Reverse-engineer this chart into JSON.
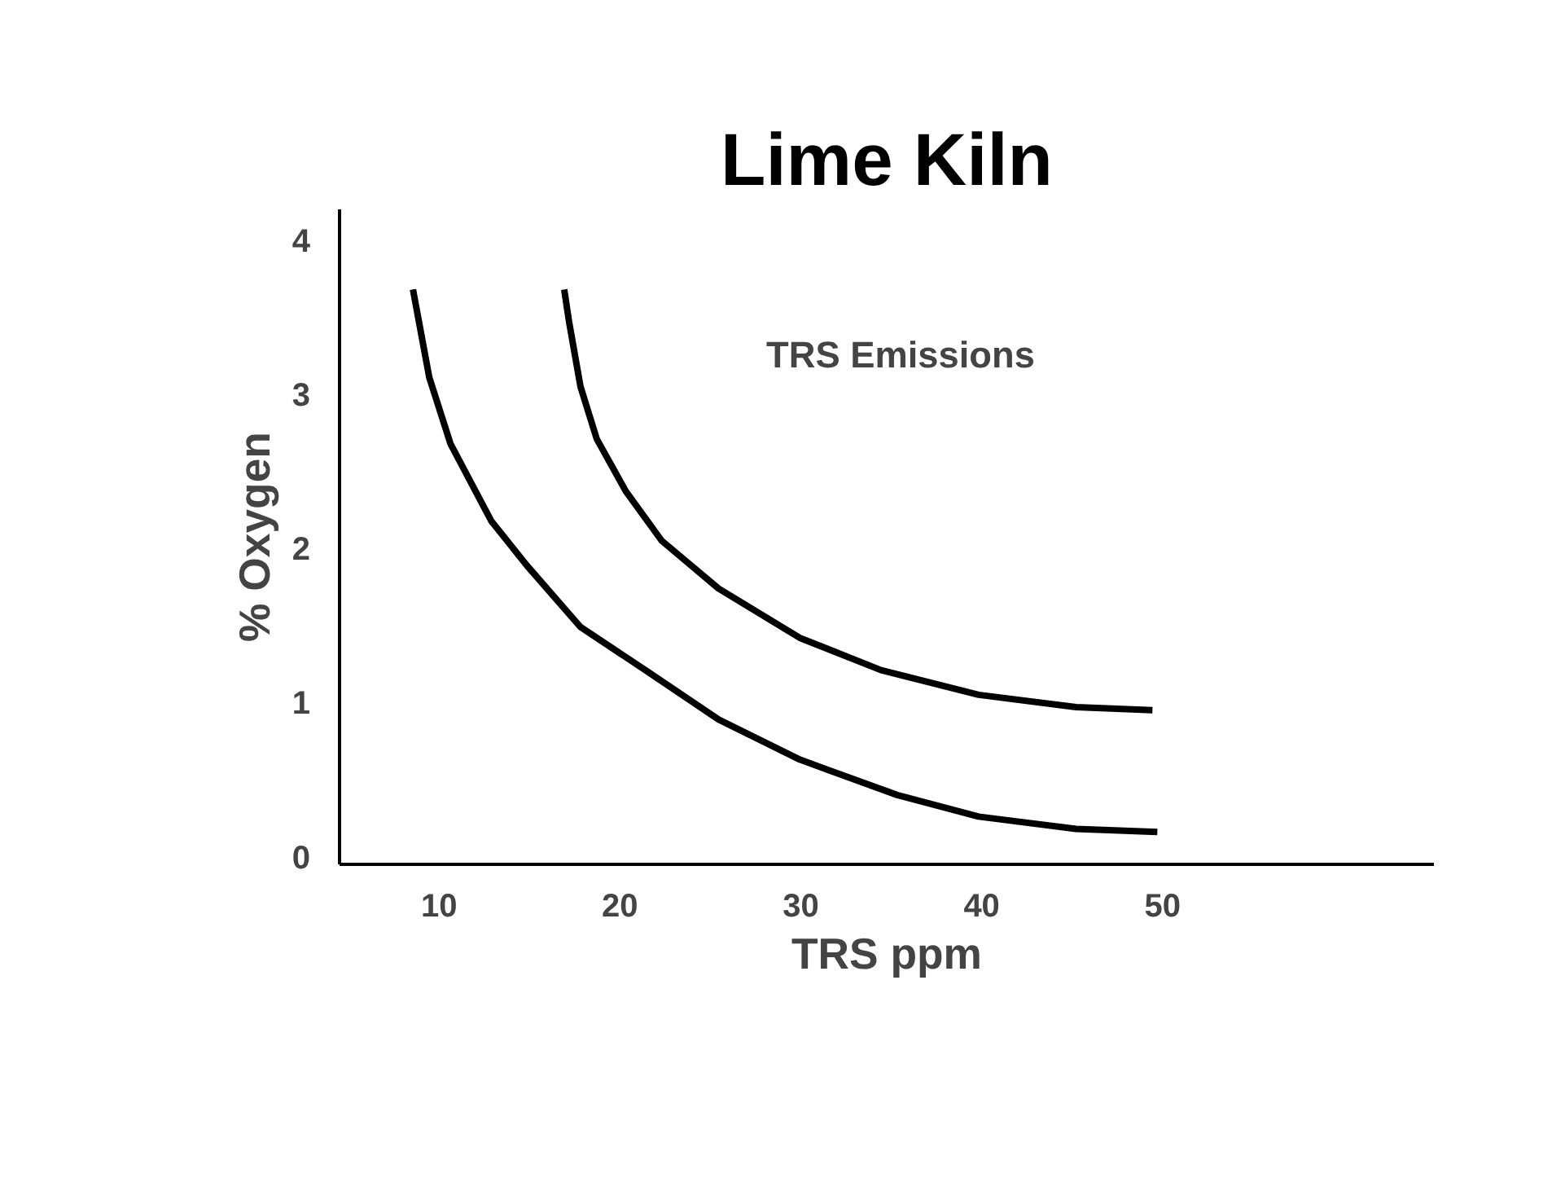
{
  "chart_data": {
    "type": "line",
    "title": "Lime Kiln",
    "xlabel": "TRS ppm",
    "ylabel": "% Oxygen",
    "annotations": [
      "TRS Emissions"
    ],
    "series": [
      {
        "color": "#000000",
        "x": [
          8.56,
          9.46,
          10.63,
          12.88,
          14.85,
          17.82,
          21.41,
          25.45,
          29.94,
          35.33,
          39.83,
          45.22,
          49.71
        ],
        "values": [
          3.68,
          3.11,
          2.68,
          2.18,
          1.89,
          1.49,
          1.21,
          0.89,
          0.63,
          0.4,
          0.26,
          0.18,
          0.16
        ]
      },
      {
        "color": "#000000",
        "x": [
          16.92,
          17.19,
          17.82,
          18.72,
          20.33,
          22.31,
          25.45,
          29.94,
          34.44,
          39.83,
          45.22,
          49.44
        ],
        "values": [
          3.68,
          3.47,
          3.05,
          2.71,
          2.37,
          2.05,
          1.74,
          1.42,
          1.21,
          1.05,
          0.97,
          0.95
        ]
      }
    ],
    "xlim": [
      4.5,
      65
    ],
    "ylim": [
      -0.05,
      4.2
    ],
    "xticks": [
      10,
      20,
      30,
      40,
      50
    ],
    "yticks": [
      0,
      1,
      2,
      3,
      4
    ],
    "marker": "none",
    "line_style": "solid"
  }
}
